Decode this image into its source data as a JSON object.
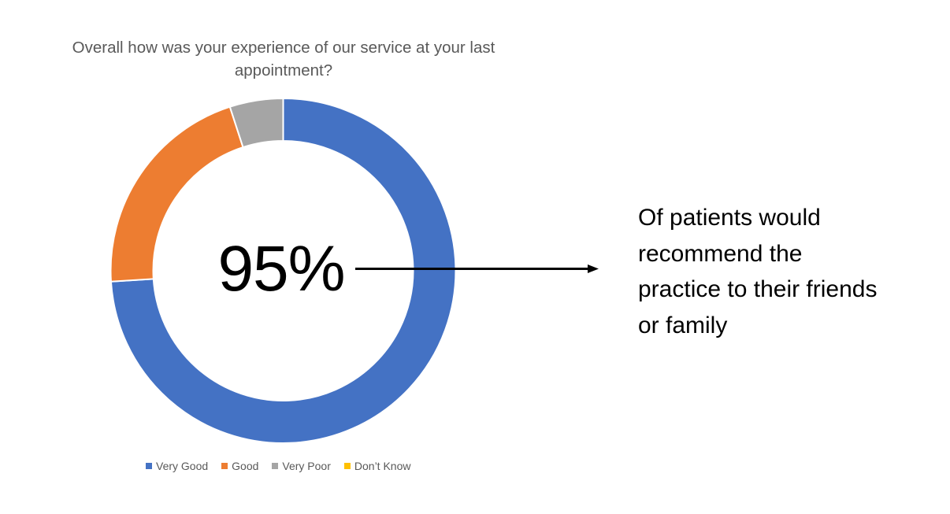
{
  "chart_data": {
    "type": "pie",
    "variant": "donut",
    "title": "Overall how was your experience of our service at your last appointment?",
    "categories": [
      "Very Good",
      "Good",
      "Very Poor",
      "Don’t Know"
    ],
    "values": [
      74,
      21,
      5,
      0
    ],
    "unit": "%",
    "colors": [
      "#4472C4",
      "#ED7D31",
      "#A5A5A5",
      "#FFC000"
    ],
    "legend_position": "bottom",
    "center_label": "95%",
    "annotation": "Of patients would recommend the practice to their friends or family"
  },
  "title": {
    "line1": "Overall how was your experience of our service at your last",
    "line2": "appointment?"
  },
  "center": {
    "value": "95%"
  },
  "callout": {
    "lines": [
      "Of patients would",
      "recommend the",
      "practice to their friends",
      "or family"
    ]
  },
  "legend": {
    "items": [
      {
        "label": "Very Good",
        "color": "#4472C4"
      },
      {
        "label": "Good",
        "color": "#ED7D31"
      },
      {
        "label": "Very Poor",
        "color": "#A5A5A5"
      },
      {
        "label": "Don’t Know",
        "color": "#FFC000"
      }
    ]
  }
}
